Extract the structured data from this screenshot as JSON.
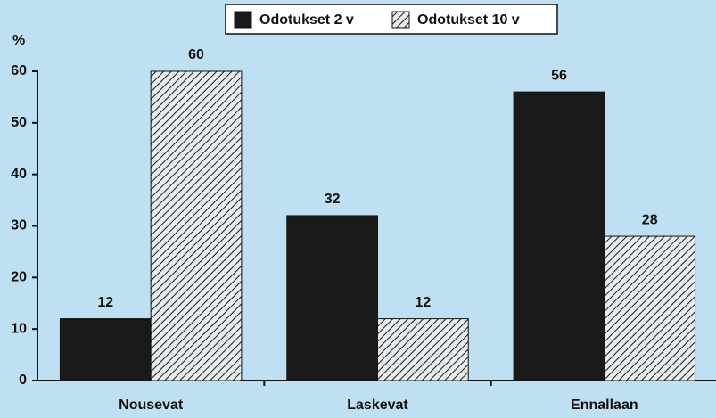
{
  "chart_data": {
    "type": "bar",
    "y_label": "%",
    "categories": [
      "Nousevat",
      "Laskevat",
      "Ennallaan"
    ],
    "series": [
      {
        "name": "Odotukset 2 v",
        "color": "#1a1a1a",
        "hatch": false,
        "values": [
          12,
          32,
          56
        ]
      },
      {
        "name": "Odotukset 10 v",
        "color": "#1a1a1a",
        "hatch": true,
        "values": [
          60,
          12,
          28
        ]
      }
    ],
    "ylim": [
      0,
      60
    ],
    "yticks": [
      0,
      10,
      20,
      30,
      40,
      50,
      60
    ],
    "grid": false,
    "legend": "top"
  }
}
